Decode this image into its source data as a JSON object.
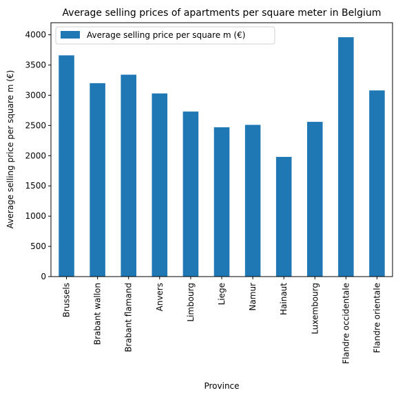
{
  "chart_data": {
    "type": "bar",
    "title": "Average selling prices of apartments per square meter in Belgium",
    "xlabel": "Province",
    "ylabel": "Average selling price per square m (€)",
    "categories": [
      "Brussels",
      "Brabant wallon",
      "Brabant flamand",
      "Anvers",
      "Limbourg",
      "Liege",
      "Namur",
      "Hainaut",
      "Luxembourg",
      "Flandre occidentale",
      "Flandre orientale"
    ],
    "series": [
      {
        "name": "Average selling price per square m (€)",
        "values": [
          3660,
          3200,
          3340,
          3030,
          2730,
          2470,
          2510,
          1980,
          2560,
          3960,
          3080
        ],
        "color": "#1f77b4"
      }
    ],
    "ylim": [
      0,
      4200
    ],
    "yticks": [
      0,
      500,
      1000,
      1500,
      2000,
      2500,
      3000,
      3500,
      4000
    ],
    "legend_position": "top-left",
    "grid": false
  }
}
